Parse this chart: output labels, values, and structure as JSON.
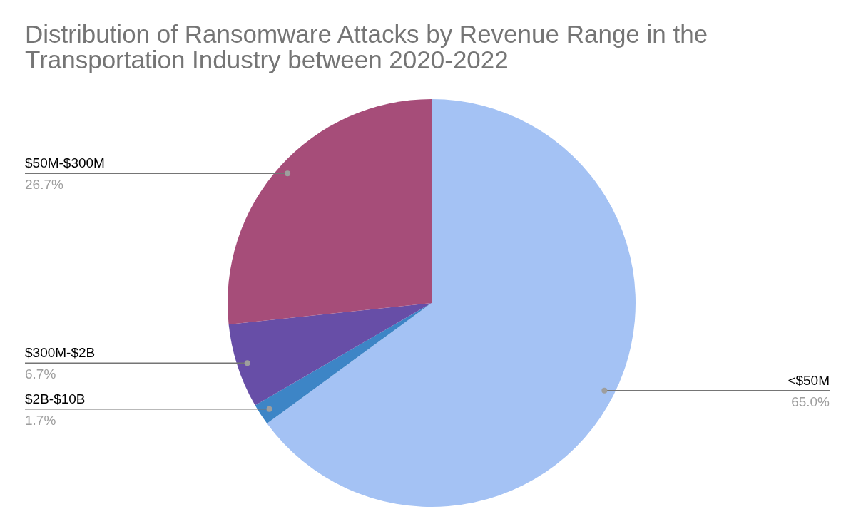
{
  "chart_data": {
    "type": "pie",
    "title": "Distribution of Ransomware Attacks by Revenue Range in the Transportation Industry between 2020-2022",
    "categories": [
      "<$50M",
      "$2B-$10B",
      "$300M-$2B",
      "$50M-$300M"
    ],
    "values": [
      65.0,
      1.7,
      6.7,
      26.7
    ],
    "colors": [
      "#a4c2f4",
      "#3d85c6",
      "#674ea7",
      "#a64d79"
    ],
    "value_labels": [
      "65.0%",
      "1.7%",
      "6.7%",
      "26.7%"
    ]
  }
}
